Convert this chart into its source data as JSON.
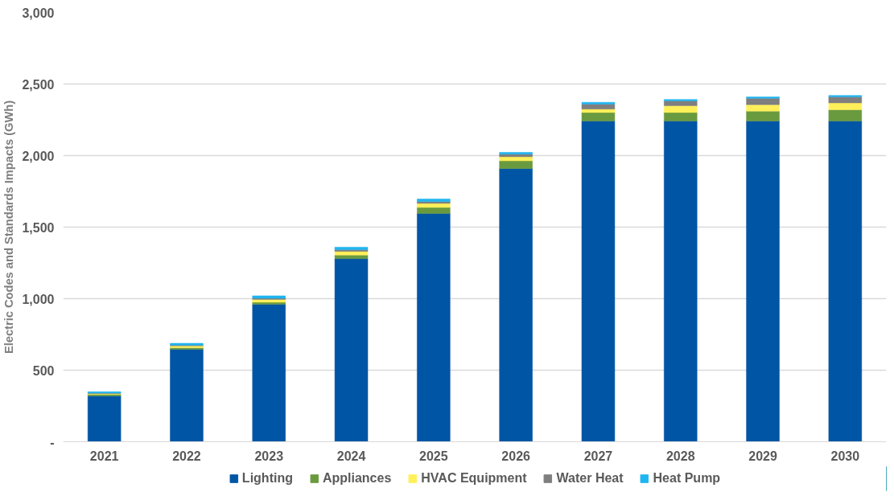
{
  "chart_data": {
    "type": "bar",
    "stacked": true,
    "ylabel": "Electric Codes and Standards Impacts (GWh)",
    "categories": [
      "2021",
      "2022",
      "2023",
      "2024",
      "2025",
      "2026",
      "2027",
      "2028",
      "2029",
      "2030"
    ],
    "series": [
      {
        "name": "Lighting",
        "color": "#0055a5",
        "values": [
          320,
          646,
          960,
          1280,
          1595,
          1909,
          2241,
          2241,
          2241,
          2241
        ]
      },
      {
        "name": "Appliances",
        "color": "#6a9a3f",
        "values": [
          12,
          12,
          15,
          25,
          42,
          54,
          60,
          60,
          70,
          79
        ]
      },
      {
        "name": "HVAC Equipment",
        "color": "#fff05a",
        "values": [
          5,
          12,
          20,
          25,
          29,
          29,
          24,
          47,
          45,
          48
        ]
      },
      {
        "name": "Water Heat",
        "color": "#7f7f7f",
        "values": [
          3,
          5,
          8,
          12,
          12,
          18,
          35,
          34,
          44,
          42
        ]
      },
      {
        "name": "Heat Pump",
        "color": "#1fb5f0",
        "values": [
          10,
          13,
          17,
          18,
          18,
          12,
          12,
          10,
          10,
          10
        ]
      }
    ],
    "ylim": [
      0,
      3000
    ],
    "yticks": [
      {
        "value": 0,
        "label": "-"
      },
      500,
      {
        "value": 1000,
        "label": "1,000"
      },
      {
        "value": 1500,
        "label": "1,500"
      },
      {
        "value": 2000,
        "label": "2,000"
      },
      {
        "value": 2500,
        "label": "2,500"
      },
      {
        "value": 3000,
        "label": "3,000"
      }
    ],
    "grid": "y",
    "legend": "bottom"
  }
}
